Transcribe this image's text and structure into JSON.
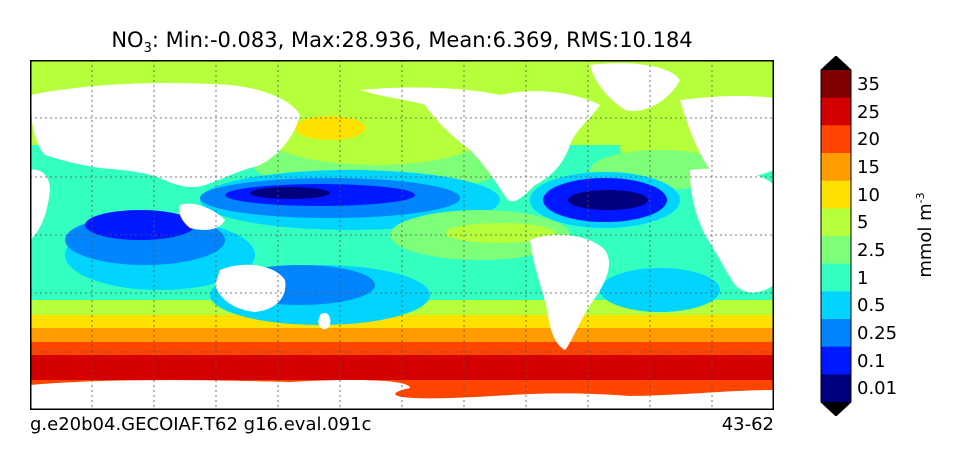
{
  "title": {
    "species": "NO",
    "subscript": "3",
    "stats": ": Min:-0.083, Max:28.936, Mean:6.369, RMS:10.184"
  },
  "footer": {
    "case": "g.e20b04.GECOIAF.T62 g16.eval.091c",
    "years": "43-62"
  },
  "colorbar": {
    "units_base": "mmol m",
    "units_exp": "-3",
    "levels": [
      {
        "label": "35",
        "color": "#7f0000"
      },
      {
        "label": "25",
        "color": "#d40000"
      },
      {
        "label": "20",
        "color": "#ff4500"
      },
      {
        "label": "15",
        "color": "#ff9c00"
      },
      {
        "label": "10",
        "color": "#ffe100"
      },
      {
        "label": "5",
        "color": "#b6ff3b"
      },
      {
        "label": "2.5",
        "color": "#7dff7a"
      },
      {
        "label": "1",
        "color": "#33ffc0"
      },
      {
        "label": "0.5",
        "color": "#00d4ff"
      },
      {
        "label": "0.25",
        "color": "#0085ff"
      },
      {
        "label": "0.1",
        "color": "#0018ff"
      },
      {
        "label": "0.01",
        "color": "#00007f"
      }
    ],
    "extend_colors": {
      "top": "#000000",
      "bottom": "#000000"
    }
  },
  "palette": {
    "land": "#ffffff",
    "deep_low": "#00007f",
    "low": "#0018ff",
    "lowmid": "#0085ff",
    "cyan": "#00d4ff",
    "aqua": "#33ffc0",
    "green": "#7dff7a",
    "lime": "#b6ff3b",
    "yellow": "#ffe100",
    "orange": "#ff9c00",
    "redorange": "#ff4500",
    "red": "#d40000"
  }
}
